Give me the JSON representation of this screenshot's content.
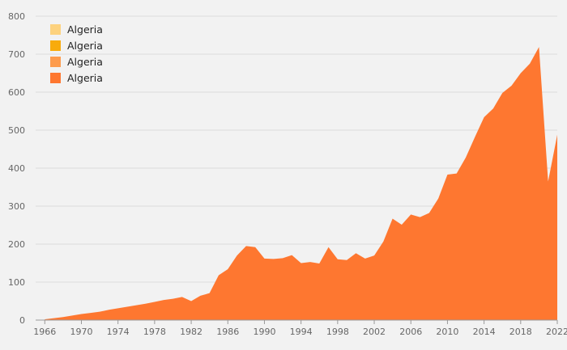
{
  "chart_data": {
    "type": "area",
    "xlim": [
      1965,
      2022
    ],
    "ylim": [
      0,
      800
    ],
    "yticks": [
      0,
      100,
      200,
      300,
      400,
      500,
      600,
      700,
      800
    ],
    "xticks": [
      1966,
      1970,
      1974,
      1978,
      1982,
      1986,
      1990,
      1994,
      1998,
      2002,
      2006,
      2010,
      2014,
      2018,
      2022
    ],
    "grid": true,
    "legend_position": "top-left",
    "legend": [
      {
        "label": "Algeria",
        "color": "#fdd27e"
      },
      {
        "label": "Algeria",
        "color": "#f8ab0c"
      },
      {
        "label": "Algeria",
        "color": "#fd9b4d"
      },
      {
        "label": "Algeria",
        "color": "#fe7730"
      }
    ],
    "series": [
      {
        "color": "#fe7730",
        "x": [
          1966,
          1967,
          1968,
          1969,
          1970,
          1971,
          1972,
          1973,
          1974,
          1975,
          1976,
          1977,
          1978,
          1979,
          1980,
          1981,
          1982,
          1983,
          1984,
          1985,
          1986,
          1987,
          1988,
          1989,
          1990,
          1991,
          1992,
          1993,
          1994,
          1995,
          1996,
          1997,
          1998,
          1999,
          2000,
          2001,
          2002,
          2003,
          2004,
          2005,
          2006,
          2007,
          2008,
          2009,
          2010,
          2011,
          2012,
          2013,
          2014,
          2015,
          2016,
          2017,
          2018,
          2019,
          2020,
          2021,
          2022
        ],
        "values": [
          2,
          5,
          8,
          12,
          16,
          19,
          22,
          27,
          31,
          35,
          39,
          43,
          48,
          53,
          56,
          61,
          50,
          64,
          71,
          118,
          134,
          170,
          195,
          192,
          162,
          161,
          163,
          171,
          150,
          153,
          149,
          192,
          160,
          158,
          176,
          162,
          170,
          207,
          267,
          251,
          278,
          271,
          282,
          320,
          383,
          386,
          428,
          482,
          534,
          557,
          598,
          617,
          650,
          675,
          719,
          365,
          488
        ]
      }
    ]
  }
}
